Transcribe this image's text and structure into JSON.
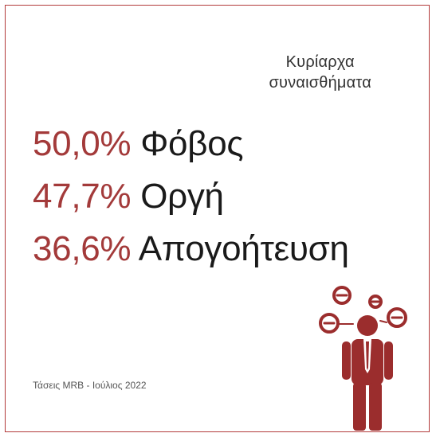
{
  "title_line1": "Κυρίαρχα",
  "title_line2": "συναισθήματα",
  "stats": [
    {
      "percent": "50,0%",
      "label": "Φόβος"
    },
    {
      "percent": "47,7%",
      "label": "Οργή"
    },
    {
      "percent": "36,6%",
      "label": "Απογοήτευση"
    }
  ],
  "source": "Τάσεις MRB - Ιούλιος 2022",
  "colors": {
    "accent": "#a33a3a",
    "figure": "#9b2d2d",
    "text": "#1a1a1a"
  },
  "figure_icon": "angry-person-icon"
}
